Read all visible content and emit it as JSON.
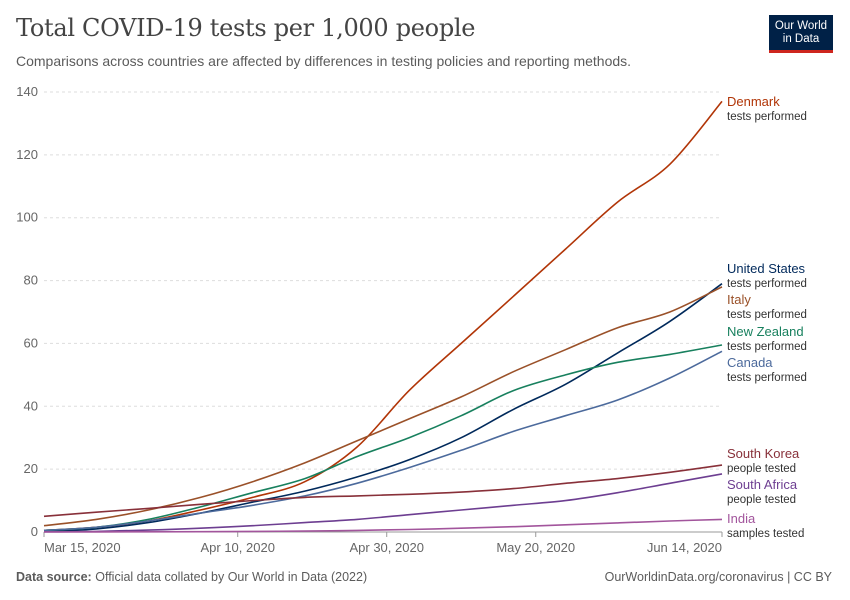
{
  "header": {
    "title": "Total COVID-19 tests per 1,000 people",
    "subtitle": "Comparisons across countries are affected by differences in testing policies and reporting methods.",
    "logo_line1": "Our World",
    "logo_line2": "in Data"
  },
  "footer": {
    "source_label": "Data source:",
    "source_text": "Official data collated by Our World in Data (2022)",
    "right_text": "OurWorldinData.org/coronavirus | CC BY"
  },
  "chart_data": {
    "type": "line",
    "title": "Total COVID-19 tests per 1,000 people",
    "xlabel": "",
    "ylabel": "",
    "ylim": [
      0,
      140
    ],
    "yticks": [
      0,
      20,
      40,
      60,
      80,
      100,
      120,
      140
    ],
    "xlim": [
      "2020-03-15",
      "2020-06-14"
    ],
    "xticks": [
      {
        "date": "2020-03-15",
        "label": "Mar 15, 2020"
      },
      {
        "date": "2020-04-10",
        "label": "Apr 10, 2020"
      },
      {
        "date": "2020-04-30",
        "label": "Apr 30, 2020"
      },
      {
        "date": "2020-05-20",
        "label": "May 20, 2020"
      },
      {
        "date": "2020-06-14",
        "label": "Jun 14, 2020"
      }
    ],
    "grid": "horizontal-dashed",
    "legend": "right-end-labels",
    "x": [
      "2020-03-15",
      "2020-03-22",
      "2020-03-29",
      "2020-04-05",
      "2020-04-12",
      "2020-04-19",
      "2020-04-26",
      "2020-05-03",
      "2020-05-10",
      "2020-05-17",
      "2020-05-24",
      "2020-05-31",
      "2020-06-07",
      "2020-06-14"
    ],
    "series": [
      {
        "name": "Denmark",
        "note": "tests performed",
        "color": "#b13507",
        "values": [
          0.5,
          1.5,
          3.5,
          7,
          11,
          16,
          27,
          45,
          60,
          75,
          90,
          105,
          117,
          137
        ]
      },
      {
        "name": "United States",
        "note": "tests performed",
        "color": "#00295b",
        "values": [
          0.1,
          1,
          3,
          6,
          9.5,
          13,
          17.5,
          23,
          30,
          39,
          47,
          57,
          67,
          79
        ]
      },
      {
        "name": "Italy",
        "note": "tests performed",
        "color": "#9a5129",
        "values": [
          2,
          4,
          7,
          11,
          16,
          22,
          29,
          36,
          43,
          51,
          58,
          65,
          70,
          78
        ]
      },
      {
        "name": "New Zealand",
        "note": "tests performed",
        "color": "#18805e",
        "values": [
          0.5,
          1.5,
          4,
          8,
          12.5,
          17,
          24,
          30,
          37,
          45,
          50,
          54,
          56.5,
          59.5
        ]
      },
      {
        "name": "Canada",
        "note": "tests performed",
        "color": "#4c6a9c",
        "values": [
          0.5,
          1.5,
          3.5,
          6,
          8.5,
          11.5,
          15.5,
          20.5,
          26,
          32,
          37,
          42,
          49,
          57.5
        ]
      },
      {
        "name": "South Korea",
        "note": "people tested",
        "color": "#883039",
        "values": [
          5,
          6.3,
          7.5,
          8.8,
          10,
          11,
          11.5,
          12,
          12.7,
          13.8,
          15.5,
          17,
          19,
          21.3
        ]
      },
      {
        "name": "South Africa",
        "note": "people tested",
        "color": "#6d3e91",
        "values": [
          0.05,
          0.2,
          0.6,
          1.2,
          2,
          3,
          4,
          5.5,
          7,
          8.5,
          10,
          12.5,
          15.5,
          18.5
        ]
      },
      {
        "name": "India",
        "note": "samples tested",
        "color": "#a2559c",
        "values": [
          0.01,
          0.02,
          0.05,
          0.1,
          0.2,
          0.3,
          0.5,
          0.8,
          1.2,
          1.7,
          2.3,
          2.9,
          3.5,
          4
        ]
      }
    ]
  }
}
